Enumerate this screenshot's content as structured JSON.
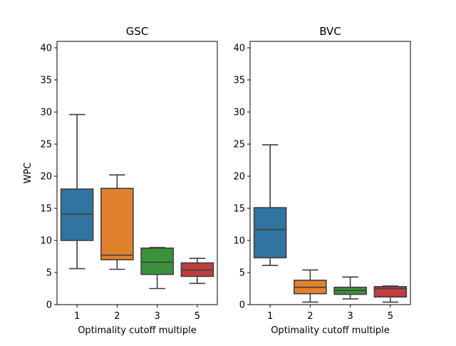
{
  "chart_data": [
    {
      "type": "box",
      "title": "GSC",
      "xlabel": "Optimality cutoff multiple",
      "ylabel": "WPC",
      "ylim": [
        0,
        41
      ],
      "yticks": [
        0,
        5,
        10,
        15,
        20,
        25,
        30,
        35,
        40
      ],
      "categories": [
        "1",
        "2",
        "3",
        "5"
      ],
      "boxes": [
        {
          "category": "1",
          "whisker_low": 5.6,
          "q1": 10.0,
          "median": 14.1,
          "q3": 18.0,
          "whisker_high": 29.6,
          "color": "#3274a1"
        },
        {
          "category": "2",
          "whisker_low": 5.5,
          "q1": 7.0,
          "median": 7.7,
          "q3": 18.1,
          "whisker_high": 20.2,
          "color": "#e1812c"
        },
        {
          "category": "3",
          "whisker_low": 2.5,
          "q1": 4.7,
          "median": 6.6,
          "q3": 8.8,
          "whisker_high": 8.9,
          "color": "#3a923a"
        },
        {
          "category": "5",
          "whisker_low": 3.3,
          "q1": 4.4,
          "median": 5.4,
          "q3": 6.5,
          "whisker_high": 7.2,
          "color": "#c03d3e"
        }
      ]
    },
    {
      "type": "box",
      "title": "BVC",
      "xlabel": "Optimality cutoff multiple",
      "ylabel": "",
      "ylim": [
        0,
        41
      ],
      "yticks": [
        0,
        5,
        10,
        15,
        20,
        25,
        30,
        35,
        40
      ],
      "categories": [
        "1",
        "2",
        "3",
        "5"
      ],
      "boxes": [
        {
          "category": "1",
          "whisker_low": 6.1,
          "q1": 7.3,
          "median": 11.7,
          "q3": 15.1,
          "whisker_high": 24.9,
          "color": "#3274a1"
        },
        {
          "category": "2",
          "whisker_low": 0.4,
          "q1": 1.7,
          "median": 2.7,
          "q3": 3.8,
          "whisker_high": 5.4,
          "color": "#e1812c"
        },
        {
          "category": "3",
          "whisker_low": 0.9,
          "q1": 1.6,
          "median": 2.2,
          "q3": 2.7,
          "whisker_high": 4.3,
          "color": "#3a923a"
        },
        {
          "category": "5",
          "whisker_low": 0.4,
          "q1": 1.2,
          "median": 2.5,
          "q3": 2.8,
          "whisker_high": 2.9,
          "color": "#c03d3e"
        }
      ]
    }
  ]
}
